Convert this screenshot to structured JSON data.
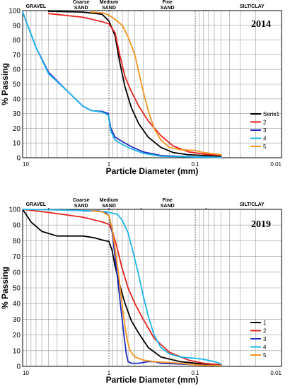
{
  "chart_data": [
    {
      "type": "line",
      "title": "2014",
      "xlabel": "Particle Diameter (mm)",
      "ylabel": "% Passing",
      "x_scale": "log-reversed",
      "xlim": [
        10,
        0.01
      ],
      "ylim": [
        0,
        100
      ],
      "x_tick_labels": [
        "10",
        "1",
        "0.1",
        "0.01"
      ],
      "y_tick_labels": [
        "0",
        "10",
        "20",
        "30",
        "40",
        "50",
        "60",
        "70",
        "80",
        "90",
        "100"
      ],
      "grid": true,
      "legend_position": "bottom-right",
      "size_classes": [
        {
          "label": "GRAVEL"
        },
        {
          "label": "Coarse SAND"
        },
        {
          "label": "Medium SAND"
        },
        {
          "label": "Fine SAND"
        },
        {
          "label": "SILT/CLAY"
        }
      ],
      "series": [
        {
          "name": "Serie1",
          "color": "#000000",
          "points": [
            [
              5,
              99.5
            ],
            [
              2,
              99
            ],
            [
              1.2,
              97.5
            ],
            [
              1,
              93
            ],
            [
              0.85,
              83
            ],
            [
              0.75,
              65
            ],
            [
              0.65,
              48
            ],
            [
              0.55,
              34
            ],
            [
              0.45,
              23
            ],
            [
              0.35,
              14
            ],
            [
              0.25,
              7
            ],
            [
              0.18,
              3.5
            ],
            [
              0.12,
              2
            ],
            [
              0.08,
              1.5
            ],
            [
              0.05,
              1
            ]
          ]
        },
        {
          "name": "2",
          "color": "#e8211b",
          "points": [
            [
              5,
              98
            ],
            [
              2,
              95.5
            ],
            [
              1.2,
              92.5
            ],
            [
              1,
              91
            ],
            [
              0.85,
              85
            ],
            [
              0.75,
              70
            ],
            [
              0.65,
              55
            ],
            [
              0.55,
              45
            ],
            [
              0.45,
              35
            ],
            [
              0.35,
              25
            ],
            [
              0.25,
              15
            ],
            [
              0.18,
              8
            ],
            [
              0.12,
              4
            ],
            [
              0.08,
              2.5
            ],
            [
              0.05,
              1.5
            ]
          ]
        },
        {
          "name": "3",
          "color": "#1f2bc2",
          "points": [
            [
              10,
              99
            ],
            [
              7,
              75
            ],
            [
              5,
              58
            ],
            [
              3,
              45
            ],
            [
              2,
              35
            ],
            [
              1.6,
              32
            ],
            [
              1.2,
              31.5
            ],
            [
              1.02,
              30
            ],
            [
              0.95,
              20
            ],
            [
              0.85,
              14
            ],
            [
              0.7,
              11
            ],
            [
              0.55,
              7.5
            ],
            [
              0.4,
              4
            ],
            [
              0.25,
              1.5
            ],
            [
              0.1,
              0.5
            ],
            [
              0.05,
              0.3
            ]
          ]
        },
        {
          "name": "4",
          "color": "#19b5ea",
          "points": [
            [
              10,
              99
            ],
            [
              7,
              75
            ],
            [
              5,
              57
            ],
            [
              3,
              45
            ],
            [
              2,
              35
            ],
            [
              1.6,
              32
            ],
            [
              1.2,
              31
            ],
            [
              1.02,
              29
            ],
            [
              0.95,
              18
            ],
            [
              0.85,
              12
            ],
            [
              0.7,
              9
            ],
            [
              0.55,
              6
            ],
            [
              0.4,
              3
            ],
            [
              0.25,
              1
            ],
            [
              0.1,
              0.5
            ],
            [
              0.05,
              0.3
            ]
          ]
        },
        {
          "name": "5",
          "color": "#f7941d",
          "points": [
            [
              1.6,
              99
            ],
            [
              1.2,
              98.5
            ],
            [
              1,
              97
            ],
            [
              0.85,
              94
            ],
            [
              0.7,
              90
            ],
            [
              0.6,
              82
            ],
            [
              0.5,
              70
            ],
            [
              0.45,
              58
            ],
            [
              0.4,
              45
            ],
            [
              0.35,
              32
            ],
            [
              0.3,
              20
            ],
            [
              0.25,
              12
            ],
            [
              0.2,
              7
            ],
            [
              0.15,
              5.5
            ],
            [
              0.12,
              5.2
            ],
            [
              0.1,
              5
            ],
            [
              0.08,
              3.5
            ],
            [
              0.05,
              2
            ]
          ]
        }
      ]
    },
    {
      "type": "line",
      "title": "2019",
      "xlabel": "Particle Diameter (mm)",
      "ylabel": "% Passing",
      "x_scale": "log-reversed",
      "xlim": [
        10,
        0.01
      ],
      "ylim": [
        0,
        100
      ],
      "x_tick_labels": [
        "10",
        "1",
        "0.1",
        "0.01"
      ],
      "y_tick_labels": [
        "0",
        "10",
        "20",
        "30",
        "40",
        "50",
        "60",
        "70",
        "80",
        "90",
        "100"
      ],
      "grid": true,
      "legend_position": "bottom-right",
      "size_classes": [
        {
          "label": "GRAVEL"
        },
        {
          "label": "Coarse SAND"
        },
        {
          "label": "Medium SAND"
        },
        {
          "label": "Fine SAND"
        },
        {
          "label": "SILT/CLAY"
        }
      ],
      "series": [
        {
          "name": "1",
          "color": "#000000",
          "points": [
            [
              10,
              100
            ],
            [
              8,
              92
            ],
            [
              6,
              86
            ],
            [
              4,
              83
            ],
            [
              3,
              83
            ],
            [
              2,
              83
            ],
            [
              1.5,
              82
            ],
            [
              1.2,
              80.5
            ],
            [
              1,
              79.5
            ],
            [
              0.92,
              74
            ],
            [
              0.85,
              64
            ],
            [
              0.75,
              52
            ],
            [
              0.65,
              40
            ],
            [
              0.55,
              29
            ],
            [
              0.45,
              21
            ],
            [
              0.35,
              12
            ],
            [
              0.25,
              6
            ],
            [
              0.15,
              3
            ],
            [
              0.08,
              1.5
            ],
            [
              0.05,
              1
            ]
          ]
        },
        {
          "name": "2",
          "color": "#e8211b",
          "points": [
            [
              10,
              100
            ],
            [
              5,
              98
            ],
            [
              2,
              95
            ],
            [
              1.2,
              92
            ],
            [
              1,
              90.5
            ],
            [
              0.9,
              85
            ],
            [
              0.8,
              75
            ],
            [
              0.7,
              62
            ],
            [
              0.6,
              50
            ],
            [
              0.5,
              40
            ],
            [
              0.4,
              30
            ],
            [
              0.3,
              18
            ],
            [
              0.2,
              9
            ],
            [
              0.12,
              4
            ],
            [
              0.08,
              2
            ],
            [
              0.05,
              1
            ]
          ]
        },
        {
          "name": "3",
          "color": "#1f2bc2",
          "points": [
            [
              2,
              99
            ],
            [
              1.3,
              99
            ],
            [
              1.1,
              98
            ],
            [
              1,
              96
            ],
            [
              0.92,
              86
            ],
            [
              0.85,
              70
            ],
            [
              0.78,
              52
            ],
            [
              0.72,
              35
            ],
            [
              0.67,
              20
            ],
            [
              0.63,
              8
            ],
            [
              0.6,
              3
            ],
            [
              0.55,
              2
            ],
            [
              0.45,
              2
            ],
            [
              0.35,
              3
            ],
            [
              0.3,
              3
            ],
            [
              0.25,
              2
            ],
            [
              0.15,
              1.5
            ],
            [
              0.08,
              0.8
            ],
            [
              0.05,
              0.5
            ]
          ]
        },
        {
          "name": "4",
          "color": "#19b5ea",
          "points": [
            [
              10,
              100
            ],
            [
              3,
              99.5
            ],
            [
              1.5,
              99
            ],
            [
              1.1,
              98.5
            ],
            [
              1,
              98
            ],
            [
              0.9,
              97.5
            ],
            [
              0.8,
              97
            ],
            [
              0.7,
              93
            ],
            [
              0.6,
              85
            ],
            [
              0.52,
              72
            ],
            [
              0.46,
              60
            ],
            [
              0.4,
              45
            ],
            [
              0.35,
              32
            ],
            [
              0.3,
              20
            ],
            [
              0.25,
              12
            ],
            [
              0.2,
              8
            ],
            [
              0.15,
              6
            ],
            [
              0.12,
              5.5
            ],
            [
              0.1,
              5.2
            ],
            [
              0.08,
              4.5
            ],
            [
              0.06,
              3
            ],
            [
              0.05,
              1.5
            ]
          ]
        },
        {
          "name": "5",
          "color": "#f7941d",
          "points": [
            [
              1.6,
              99
            ],
            [
              1.2,
              98.5
            ],
            [
              1,
              96
            ],
            [
              0.92,
              88
            ],
            [
              0.85,
              75
            ],
            [
              0.78,
              60
            ],
            [
              0.72,
              44
            ],
            [
              0.67,
              30
            ],
            [
              0.62,
              18
            ],
            [
              0.57,
              10
            ],
            [
              0.5,
              6
            ],
            [
              0.4,
              4
            ],
            [
              0.3,
              3
            ],
            [
              0.2,
              2.5
            ],
            [
              0.15,
              2
            ],
            [
              0.1,
              1
            ],
            [
              0.08,
              0.7
            ],
            [
              0.05,
              0.5
            ]
          ]
        }
      ]
    }
  ]
}
